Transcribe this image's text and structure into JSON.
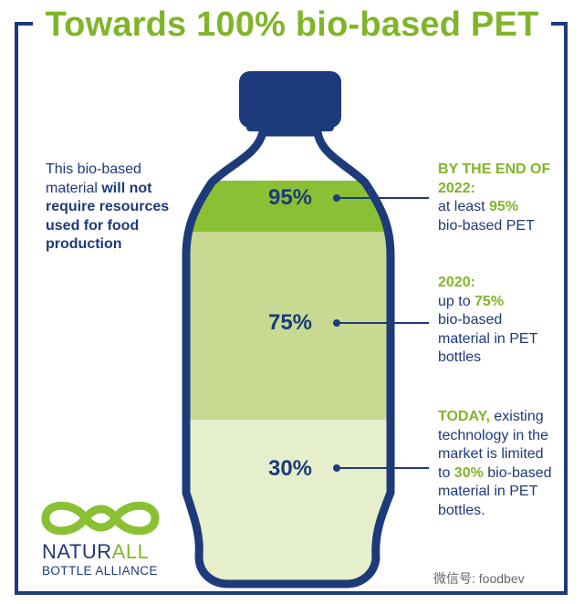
{
  "title": "Towards 100% bio-based PET",
  "left_note": {
    "part1": "This bio-based material ",
    "bold": "will not require resources used for food production"
  },
  "levels": [
    {
      "percent": "95%",
      "fraction": 0.95
    },
    {
      "percent": "75%",
      "fraction": 0.75
    },
    {
      "percent": "30%",
      "fraction": 0.3
    }
  ],
  "notes": {
    "n2022": {
      "highlight": "BY THE END OF 2022:",
      "line_prefix": "at least ",
      "value": "95%",
      "line_suffix": "bio-based PET"
    },
    "n2020": {
      "highlight": "2020:",
      "line_prefix": "up to ",
      "value": "75%",
      "line_suffix": "bio-based material in PET bottles"
    },
    "today": {
      "highlight": "TODAY,",
      "text1": " existing technology in the market is limited to ",
      "value": "30%",
      "text2": " bio-based material in PET bottles."
    }
  },
  "logo": {
    "name_part1": "NATUR",
    "name_part2": "ALL",
    "subtitle": "BOTTLE ALLIANCE"
  },
  "watermark": "微信号: foodbev",
  "colors": {
    "navy": "#1d3a7a",
    "green": "#80b52a",
    "fill95": "#8bc034",
    "fill75": "#c8da92",
    "fill30": "#e6efcc"
  }
}
